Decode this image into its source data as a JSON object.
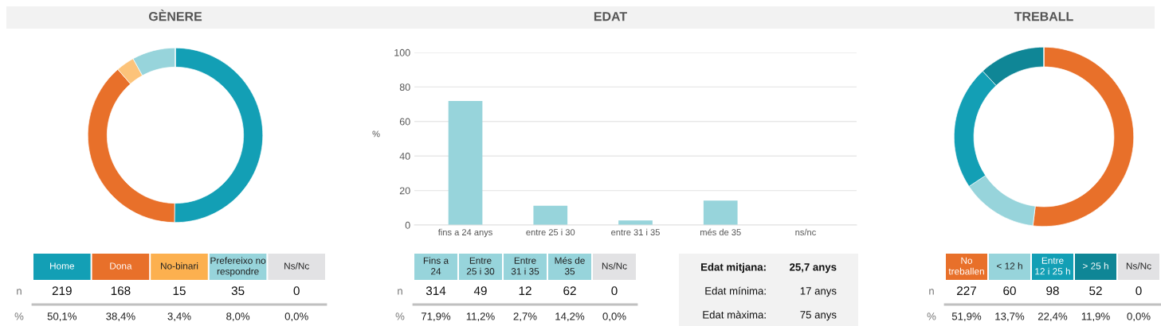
{
  "chart_data": [
    {
      "type": "donut",
      "title": "GÈNERE",
      "categories": [
        null,
        null,
        null,
        null,
        null
      ],
      "values": [
        50.1,
        38.4,
        3.4,
        8.0,
        0.0
      ],
      "colors": [
        "#139fb5",
        "#e8702a",
        "#fcc37a",
        "#97d4db",
        "#e2e2e4"
      ]
    },
    {
      "type": "other",
      "colors": [
        "#139fb5",
        "#e8702a",
        "#fcb04f",
        "#97d4db",
        "#e2e2e4"
      ],
      "annotations": [
        "Home",
        "Dona",
        "No-binari",
        "Prefereixo no\nrespondre",
        "Ns/Nc",
        "n",
        "219",
        "168",
        "15",
        "35",
        "0",
        "%",
        "50,1%",
        "38,4%",
        "3,4%",
        "8,0%",
        "0,0%"
      ]
    },
    {
      "type": "bar",
      "title": "EDAT",
      "ylabel": "%",
      "categories": [
        "fins a 24 anys",
        "entre 25 i 30",
        "entre 31 i 35",
        "més de 35",
        "ns/nc"
      ],
      "values": [
        71.9,
        11.2,
        2.7,
        14.2,
        0.0
      ],
      "color": "#97d4db",
      "ylim": [
        0,
        100
      ],
      "yticks": [
        0,
        20,
        40,
        60,
        80,
        100
      ],
      "grid": "y"
    },
    {
      "type": "other",
      "colors": [
        "#97d4db",
        "#97d4db",
        "#97d4db",
        "#97d4db",
        "#e2e2e4"
      ],
      "annotations": [
        "Fins a\n24",
        "Entre\n25 i 30",
        "Entre\n31 i 35",
        "Més de\n35",
        "Ns/Nc",
        "n",
        "314",
        "49",
        "12",
        "62",
        "0",
        "%",
        "71,9%",
        "11,2%",
        "2,7%",
        "14,2%",
        "0,0%"
      ]
    },
    {
      "type": "other",
      "annotations": [
        "Edat mitjana:",
        "25,7 anys",
        "Edat mínima:",
        "17 anys",
        "Edat màxima:",
        "75 anys"
      ]
    },
    {
      "type": "donut",
      "title": "TREBALL",
      "categories": [
        null,
        null,
        null,
        null,
        null
      ],
      "values": [
        51.9,
        13.7,
        22.4,
        11.9,
        0.0
      ],
      "colors": [
        "#e8702a",
        "#97d4db",
        "#139fb5",
        "#0f8696",
        "#e2e2e4"
      ]
    },
    {
      "type": "other",
      "colors": [
        "#e8702a",
        "#97d4db",
        "#139fb5",
        "#0f8696",
        "#e2e2e4"
      ],
      "annotations": [
        "No\ntreballen",
        "< 12 h",
        "Entre\n12 i 25 h",
        "> 25 h",
        "Ns/Nc",
        "n",
        "227",
        "60",
        "98",
        "52",
        "0",
        "%",
        "51,9%",
        "13,7%",
        "22,4%",
        "11,9%",
        "0,0%"
      ]
    }
  ]
}
